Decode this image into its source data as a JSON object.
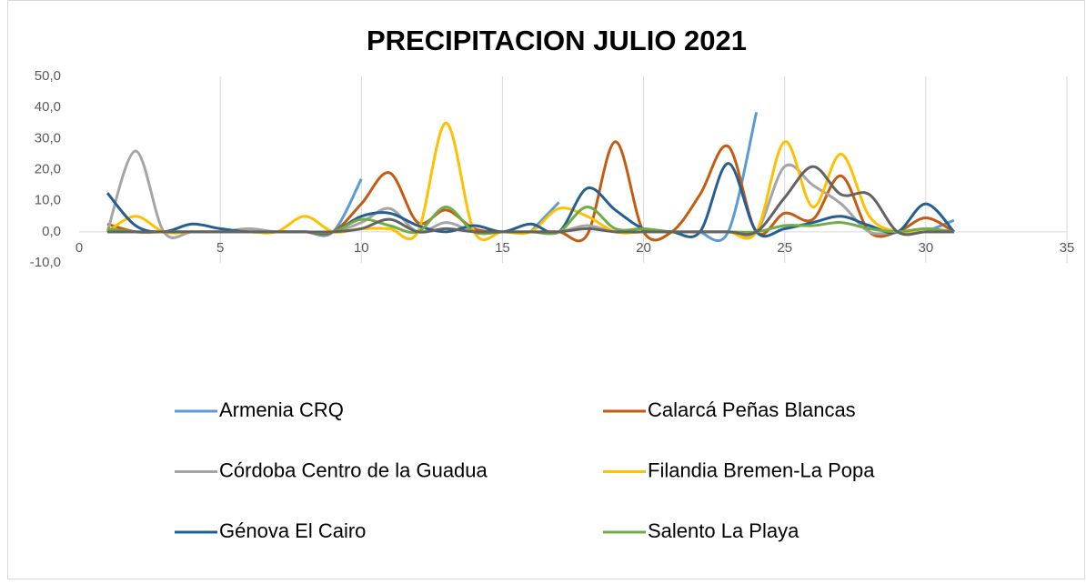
{
  "chart_data": {
    "type": "line",
    "title": "PRECIPITACION JULIO 2021",
    "x": [
      1,
      2,
      3,
      4,
      5,
      6,
      7,
      8,
      9,
      10,
      11,
      12,
      13,
      14,
      15,
      16,
      17,
      18,
      19,
      20,
      21,
      22,
      23,
      24,
      25,
      26,
      27,
      28,
      29,
      30,
      31
    ],
    "xlim": [
      0,
      35
    ],
    "xticks": [
      0,
      5,
      10,
      15,
      20,
      25,
      30,
      35
    ],
    "ylim": [
      -10,
      50
    ],
    "yticks": [
      {
        "value": -10,
        "label": "-10,0"
      },
      {
        "value": 0,
        "label": "0,0"
      },
      {
        "value": 10,
        "label": "10,0"
      },
      {
        "value": 20,
        "label": "20,0"
      },
      {
        "value": 30,
        "label": "30,0"
      },
      {
        "value": 40,
        "label": "40,0"
      },
      {
        "value": 50,
        "label": "50,0"
      }
    ],
    "grid": true,
    "legend": "bottom",
    "series": [
      {
        "name": "Armenia CRQ",
        "color": "#5B9BD5",
        "values": [
          0,
          0,
          0,
          0,
          0,
          0,
          0,
          0,
          0,
          17,
          null,
          null,
          null,
          null,
          null,
          0,
          9.5,
          null,
          null,
          null,
          null,
          0,
          0,
          38.5,
          null,
          null,
          null,
          null,
          null,
          0,
          3.7
        ]
      },
      {
        "name": "Calarcá Peñas Blancas",
        "color": "#C55A11",
        "values": [
          2.5,
          0,
          0,
          0,
          0,
          0,
          0,
          0,
          0,
          9,
          19,
          3,
          7,
          1,
          0,
          0,
          0,
          -1,
          29,
          0,
          0,
          12,
          27.5,
          0,
          6,
          4,
          18,
          0,
          0,
          4.5,
          0
        ]
      },
      {
        "name": "Córdoba Centro de la Guadua",
        "color": "#A5A5A5",
        "values": [
          0,
          26,
          0,
          0,
          0,
          1,
          0,
          0,
          0,
          3,
          7.5,
          0,
          3,
          0,
          0,
          0,
          0,
          2,
          0,
          0,
          0,
          0,
          0,
          0,
          21,
          15,
          9,
          0,
          0,
          0,
          0
        ]
      },
      {
        "name": "Filandia Bremen-La Popa",
        "color": "#FFC000",
        "values": [
          0,
          5,
          0,
          0,
          0,
          0,
          0,
          5,
          0,
          1,
          1,
          0,
          35,
          0,
          0,
          0,
          7.5,
          5,
          0,
          0,
          0,
          0,
          0,
          0,
          29,
          8,
          25,
          5,
          0,
          0,
          0
        ]
      },
      {
        "name": "Génova El Cairo",
        "color": "#255E91",
        "values": [
          12.5,
          2,
          0,
          2.5,
          1,
          0,
          0,
          0,
          0,
          5,
          6,
          2,
          0,
          2,
          0,
          2.5,
          0,
          14,
          7,
          1,
          0,
          0,
          22,
          0,
          1,
          3,
          5,
          2,
          0,
          9,
          0
        ]
      },
      {
        "name": "Salento  La Playa",
        "color": "#70AD47",
        "values": [
          1,
          0,
          0,
          0,
          0,
          0,
          0,
          0,
          0,
          4,
          2,
          0,
          8,
          0,
          0,
          0,
          0,
          8,
          1,
          1,
          0,
          0,
          0,
          0,
          2,
          2,
          3,
          1,
          0,
          1,
          0
        ]
      },
      {
        "color": "#636363",
        "values": [
          0,
          0,
          0,
          0,
          0,
          0,
          0,
          0,
          0,
          1,
          4,
          0,
          1,
          0,
          0,
          0,
          0,
          1,
          0,
          0,
          0,
          0,
          0,
          0,
          11,
          21,
          12,
          12,
          0,
          0,
          0
        ]
      }
    ]
  }
}
